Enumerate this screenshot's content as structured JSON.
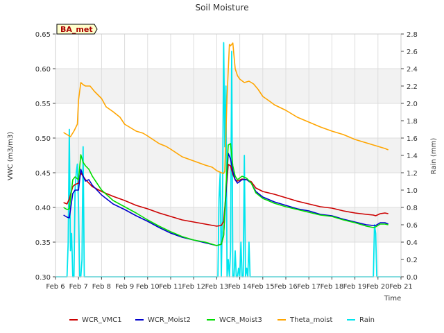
{
  "chart_data": {
    "type": "line",
    "title": "Soil Moisture",
    "site_label": "BA_met",
    "xlabel": "Time",
    "ylabel": "VWC (m3/m3)",
    "y2label": "Rain (mm)",
    "xlim": [
      6,
      21
    ],
    "ylim": [
      0.3,
      0.65
    ],
    "y2lim": [
      0.0,
      2.8
    ],
    "x_ticks": [
      {
        "v": 6,
        "label": "Feb 6"
      },
      {
        "v": 7,
        "label": "Feb 7"
      },
      {
        "v": 8,
        "label": "Feb 8"
      },
      {
        "v": 9,
        "label": "Feb 9"
      },
      {
        "v": 10,
        "label": "Feb 10"
      },
      {
        "v": 11,
        "label": "Feb 11"
      },
      {
        "v": 12,
        "label": "Feb 12"
      },
      {
        "v": 13,
        "label": "Feb 13"
      },
      {
        "v": 14,
        "label": "Feb 14"
      },
      {
        "v": 15,
        "label": "Feb 15"
      },
      {
        "v": 16,
        "label": "Feb 16"
      },
      {
        "v": 17,
        "label": "Feb 17"
      },
      {
        "v": 18,
        "label": "Feb 18"
      },
      {
        "v": 19,
        "label": "Feb 19"
      },
      {
        "v": 20,
        "label": "Feb 20"
      },
      {
        "v": 21,
        "label": "Feb 21"
      }
    ],
    "y_ticks": [
      "0.30",
      "0.35",
      "0.40",
      "0.45",
      "0.50",
      "0.55",
      "0.60",
      "0.65"
    ],
    "y2_ticks": [
      "0.0",
      "0.2",
      "0.4",
      "0.6",
      "0.8",
      "1.0",
      "1.2",
      "1.4",
      "1.6",
      "1.8",
      "2.0",
      "2.2",
      "2.4",
      "2.6",
      "2.8"
    ],
    "bands": [
      [
        0.35,
        0.4
      ],
      [
        0.45,
        0.5
      ],
      [
        0.55,
        0.6
      ]
    ],
    "grid": true,
    "legend_position": "bottom",
    "series": [
      {
        "name": "WCR_VMC1",
        "color": "#cc0000",
        "axis": "left",
        "x": [
          6.35,
          6.5,
          6.6,
          6.75,
          6.85,
          7.0,
          7.1,
          7.2,
          7.3,
          7.45,
          7.6,
          8.0,
          8.5,
          9.0,
          9.5,
          10.0,
          10.5,
          11.0,
          11.5,
          12.0,
          12.5,
          13.0,
          13.2,
          13.3,
          13.4,
          13.5,
          13.6,
          13.7,
          13.8,
          13.9,
          14.1,
          14.3,
          14.5,
          14.7,
          15.0,
          15.5,
          16.0,
          16.5,
          17.0,
          17.5,
          18.0,
          18.5,
          19.0,
          19.5,
          19.8,
          19.9,
          20.1,
          20.3,
          20.45
        ],
        "y": [
          0.407,
          0.405,
          0.412,
          0.43,
          0.433,
          0.435,
          0.45,
          0.445,
          0.44,
          0.435,
          0.43,
          0.423,
          0.416,
          0.41,
          0.403,
          0.398,
          0.392,
          0.387,
          0.382,
          0.379,
          0.376,
          0.373,
          0.374,
          0.38,
          0.42,
          0.462,
          0.46,
          0.448,
          0.44,
          0.438,
          0.441,
          0.44,
          0.437,
          0.428,
          0.423,
          0.419,
          0.414,
          0.409,
          0.405,
          0.401,
          0.399,
          0.395,
          0.392,
          0.39,
          0.389,
          0.388,
          0.391,
          0.392,
          0.391
        ]
      },
      {
        "name": "WCR_Moist2",
        "color": "#0000cc",
        "axis": "left",
        "x": [
          6.35,
          6.5,
          6.6,
          6.75,
          6.85,
          7.0,
          7.1,
          7.2,
          7.3,
          7.45,
          7.6,
          8.0,
          8.5,
          9.0,
          9.5,
          10.0,
          10.5,
          11.0,
          11.5,
          12.0,
          12.5,
          13.0,
          13.2,
          13.3,
          13.4,
          13.5,
          13.6,
          13.7,
          13.8,
          13.9,
          14.1,
          14.3,
          14.5,
          14.7,
          15.0,
          15.5,
          16.0,
          16.5,
          17.0,
          17.5,
          18.0,
          18.5,
          19.0,
          19.5,
          19.8,
          19.9,
          20.1,
          20.3,
          20.45
        ],
        "y": [
          0.389,
          0.386,
          0.385,
          0.42,
          0.425,
          0.425,
          0.455,
          0.445,
          0.438,
          0.44,
          0.432,
          0.418,
          0.405,
          0.397,
          0.388,
          0.38,
          0.371,
          0.363,
          0.357,
          0.353,
          0.349,
          0.345,
          0.347,
          0.36,
          0.42,
          0.478,
          0.47,
          0.452,
          0.44,
          0.435,
          0.44,
          0.44,
          0.435,
          0.423,
          0.415,
          0.408,
          0.403,
          0.398,
          0.395,
          0.39,
          0.388,
          0.383,
          0.379,
          0.375,
          0.374,
          0.374,
          0.378,
          0.378,
          0.376
        ]
      },
      {
        "name": "WCR_Moist3",
        "color": "#00dd00",
        "axis": "left",
        "x": [
          6.35,
          6.5,
          6.6,
          6.75,
          6.85,
          7.0,
          7.1,
          7.2,
          7.3,
          7.45,
          7.6,
          8.0,
          8.5,
          9.0,
          9.5,
          10.0,
          10.5,
          11.0,
          11.5,
          12.0,
          12.5,
          13.0,
          13.2,
          13.3,
          13.4,
          13.5,
          13.6,
          13.7,
          13.8,
          13.9,
          14.1,
          14.3,
          14.5,
          14.7,
          15.0,
          15.5,
          16.0,
          16.5,
          17.0,
          17.5,
          18.0,
          18.5,
          19.0,
          19.5,
          19.8,
          19.9,
          20.1,
          20.3,
          20.45
        ],
        "y": [
          0.4,
          0.397,
          0.398,
          0.44,
          0.444,
          0.44,
          0.476,
          0.465,
          0.46,
          0.455,
          0.445,
          0.425,
          0.41,
          0.401,
          0.392,
          0.382,
          0.373,
          0.365,
          0.358,
          0.353,
          0.35,
          0.345,
          0.347,
          0.36,
          0.43,
          0.49,
          0.492,
          0.46,
          0.445,
          0.44,
          0.445,
          0.442,
          0.435,
          0.421,
          0.413,
          0.406,
          0.401,
          0.397,
          0.393,
          0.389,
          0.387,
          0.382,
          0.378,
          0.373,
          0.371,
          0.372,
          0.376,
          0.376,
          0.375
        ]
      },
      {
        "name": "Theta_moist",
        "color": "#ffa500",
        "axis": "left",
        "x": [
          6.35,
          6.5,
          6.65,
          6.8,
          6.95,
          7.0,
          7.1,
          7.2,
          7.3,
          7.5,
          7.7,
          8.0,
          8.2,
          8.5,
          8.8,
          9.0,
          9.3,
          9.5,
          9.8,
          10.0,
          10.5,
          10.8,
          11.0,
          11.5,
          12.0,
          12.5,
          12.8,
          13.0,
          13.2,
          13.3,
          13.35,
          13.45,
          13.55,
          13.6,
          13.7,
          13.8,
          13.9,
          14.0,
          14.2,
          14.4,
          14.6,
          14.8,
          15.0,
          15.3,
          15.5,
          16.0,
          16.5,
          17.0,
          17.5,
          18.0,
          18.5,
          19.0,
          19.5,
          20.0,
          20.3,
          20.45
        ],
        "y": [
          0.508,
          0.505,
          0.502,
          0.51,
          0.52,
          0.555,
          0.58,
          0.577,
          0.575,
          0.575,
          0.567,
          0.557,
          0.545,
          0.538,
          0.53,
          0.52,
          0.514,
          0.51,
          0.507,
          0.503,
          0.492,
          0.488,
          0.484,
          0.473,
          0.467,
          0.461,
          0.458,
          0.453,
          0.45,
          0.449,
          0.452,
          0.56,
          0.635,
          0.633,
          0.637,
          0.6,
          0.59,
          0.585,
          0.58,
          0.582,
          0.578,
          0.57,
          0.56,
          0.553,
          0.548,
          0.54,
          0.53,
          0.523,
          0.516,
          0.51,
          0.505,
          0.498,
          0.493,
          0.488,
          0.485,
          0.483
        ]
      },
      {
        "name": "Rain",
        "color": "#00e5ee",
        "axis": "right",
        "x": [
          6.0,
          6.5,
          6.55,
          6.6,
          6.65,
          6.7,
          6.75,
          6.8,
          6.85,
          6.9,
          6.95,
          7.0,
          7.05,
          7.1,
          7.15,
          7.2,
          7.25,
          7.3,
          7.35,
          13.0,
          13.05,
          13.1,
          13.15,
          13.2,
          13.25,
          13.3,
          13.35,
          13.4,
          13.45,
          13.5,
          13.55,
          13.6,
          13.65,
          13.7,
          13.75,
          13.8,
          13.85,
          13.9,
          13.95,
          14.0,
          14.05,
          14.1,
          14.15,
          14.2,
          14.25,
          14.3,
          14.35,
          14.4,
          14.45,
          19.8,
          19.85,
          19.9,
          19.95,
          21.0
        ],
        "y": [
          0.0,
          0.0,
          0.4,
          1.7,
          0.3,
          0.5,
          0.0,
          0.0,
          1.0,
          1.2,
          1.3,
          0.8,
          0.0,
          0.0,
          0.2,
          1.5,
          0.0,
          0.0,
          0.0,
          0.0,
          0.0,
          0.9,
          1.2,
          0.0,
          0.8,
          2.7,
          1.5,
          2.2,
          0.0,
          0.2,
          0.0,
          0.3,
          2.6,
          0.0,
          0.0,
          0.3,
          0.0,
          0.0,
          0.1,
          0.0,
          0.4,
          0.0,
          0.0,
          1.4,
          0.0,
          0.1,
          0.0,
          0.4,
          0.0,
          0.0,
          0.6,
          0.5,
          0.0,
          0.0
        ]
      }
    ]
  }
}
